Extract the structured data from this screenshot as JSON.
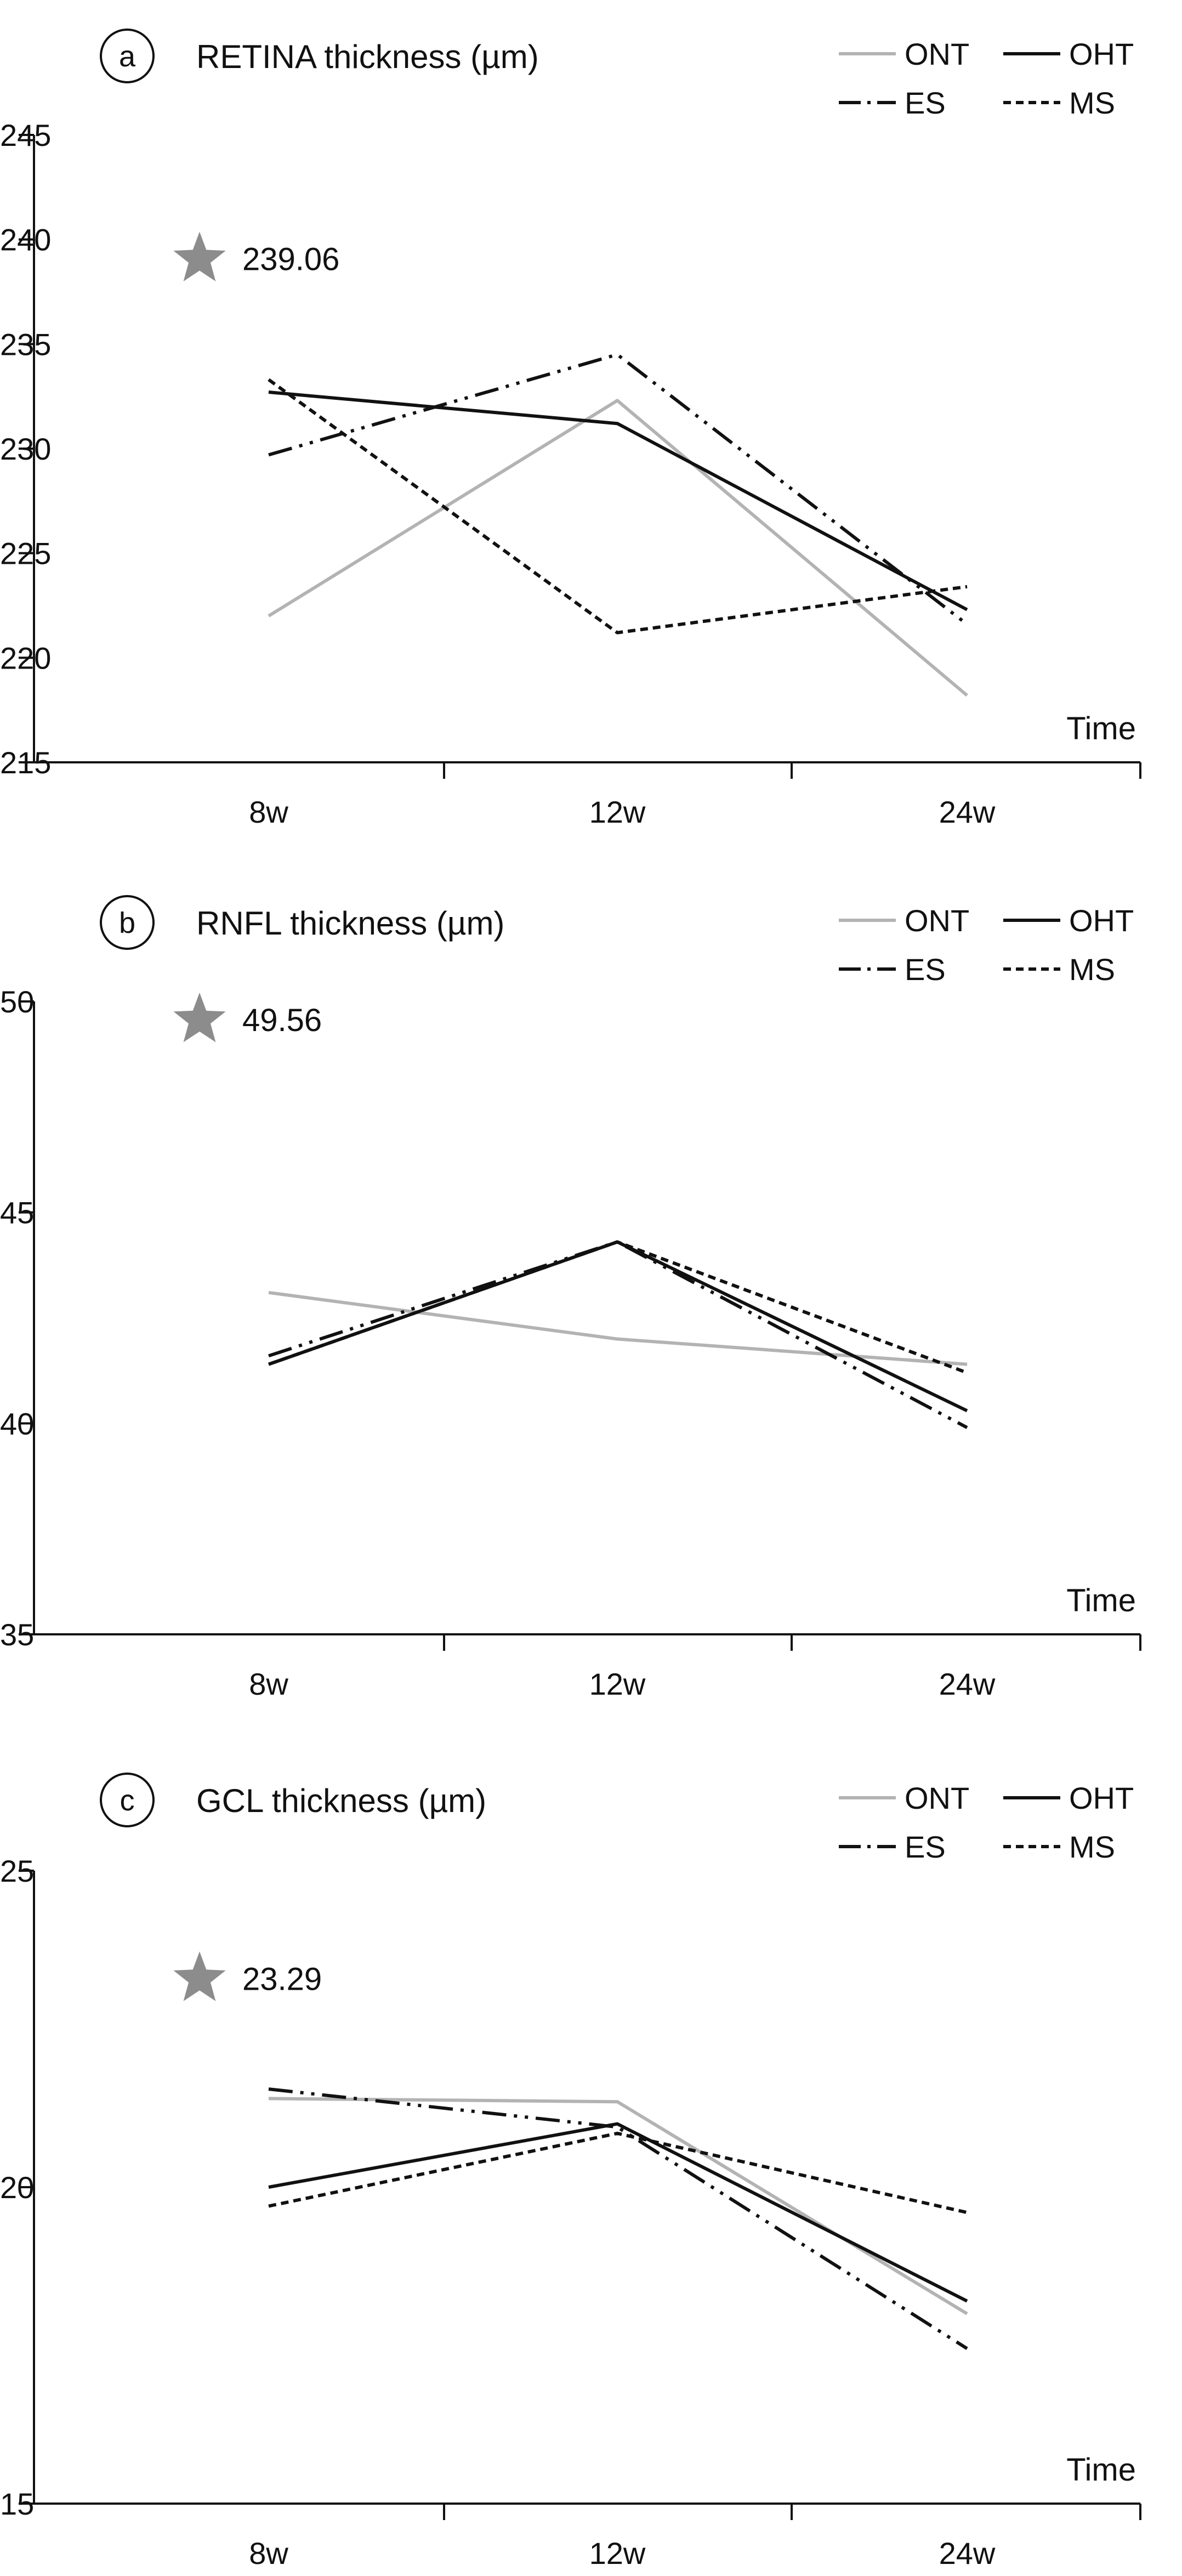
{
  "legend": {
    "entries": [
      {
        "key": "ONT",
        "label": "ONT",
        "color": "#b3b3b3",
        "style": "solid"
      },
      {
        "key": "OHT",
        "label": "OHT",
        "color": "#111111",
        "style": "solid"
      },
      {
        "key": "ES",
        "label": "ES",
        "color": "#111111",
        "style": "dashdotdot"
      },
      {
        "key": "MS",
        "label": "MS",
        "color": "#111111",
        "style": "dotted"
      }
    ]
  },
  "star_color": "#8c8c8c",
  "chart_data": [
    {
      "panel": "a",
      "type": "line",
      "title": "RETINA thickness (µm)",
      "xlabel": "Time",
      "categories": [
        "8w",
        "12w",
        "24w"
      ],
      "ylim": [
        215,
        245
      ],
      "yticks": [
        215,
        220,
        225,
        230,
        235,
        240,
        245
      ],
      "star_value": "239.06",
      "star_y": 239.06,
      "series": [
        {
          "name": "ONT",
          "values": [
            222.0,
            232.3,
            218.2
          ]
        },
        {
          "name": "OHT",
          "values": [
            232.7,
            231.2,
            222.3
          ]
        },
        {
          "name": "ES",
          "values": [
            229.7,
            234.5,
            221.6
          ]
        },
        {
          "name": "MS",
          "values": [
            233.3,
            221.2,
            223.4
          ]
        }
      ]
    },
    {
      "panel": "b",
      "type": "line",
      "title": "RNFL thickness (µm)",
      "xlabel": "Time",
      "categories": [
        "8w",
        "12w",
        "24w"
      ],
      "ylim": [
        35,
        50
      ],
      "yticks": [
        35,
        40,
        45,
        50
      ],
      "star_value": "49.56",
      "star_y": 49.56,
      "series": [
        {
          "name": "ONT",
          "values": [
            43.1,
            42.0,
            41.4
          ]
        },
        {
          "name": "OHT",
          "values": [
            41.4,
            44.3,
            40.3
          ]
        },
        {
          "name": "ES",
          "values": [
            41.6,
            44.3,
            39.9
          ]
        },
        {
          "name": "MS",
          "values": [
            41.4,
            44.3,
            41.2
          ]
        }
      ]
    },
    {
      "panel": "c",
      "type": "line",
      "title": "GCL thickness (µm)",
      "xlabel": "Time",
      "categories": [
        "8w",
        "12w",
        "24w"
      ],
      "ylim": [
        15,
        25
      ],
      "yticks": [
        15,
        20,
        25
      ],
      "star_value": "23.29",
      "star_y": 23.29,
      "series": [
        {
          "name": "ONT",
          "values": [
            21.4,
            21.35,
            18.0
          ]
        },
        {
          "name": "OHT",
          "values": [
            20.0,
            21.0,
            18.2
          ]
        },
        {
          "name": "ES",
          "values": [
            21.55,
            20.95,
            17.45
          ]
        },
        {
          "name": "MS",
          "values": [
            19.7,
            20.85,
            19.6
          ]
        }
      ]
    }
  ]
}
